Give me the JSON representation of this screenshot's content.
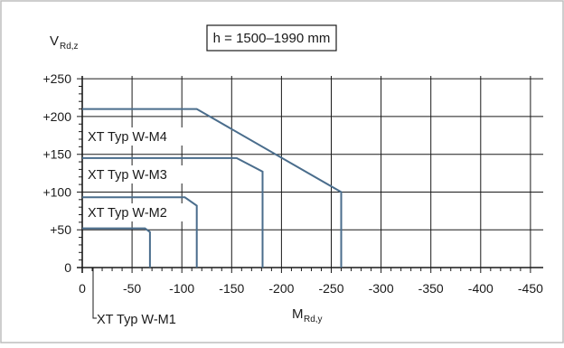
{
  "chart_data": {
    "type": "line",
    "title": "h = 1500–1990 mm",
    "ylabel": {
      "main": "V",
      "sub": "Rd,z"
    },
    "xlabel": {
      "main": "M",
      "sub": "Rd,y"
    },
    "xlim": [
      0,
      -460
    ],
    "ylim": [
      0,
      255
    ],
    "x_ticks": [
      {
        "value": 0,
        "label": "0"
      },
      {
        "value": -50,
        "label": "-50"
      },
      {
        "value": -100,
        "label": "-100"
      },
      {
        "value": -150,
        "label": "-150"
      },
      {
        "value": -200,
        "label": "-200"
      },
      {
        "value": -250,
        "label": "-250"
      },
      {
        "value": -300,
        "label": "-300"
      },
      {
        "value": -350,
        "label": "-350"
      },
      {
        "value": -400,
        "label": "-400"
      },
      {
        "value": -450,
        "label": "-450"
      }
    ],
    "y_ticks": [
      {
        "value": 0,
        "label": "0"
      },
      {
        "value": 50,
        "label": "+50"
      },
      {
        "value": 100,
        "label": "+100"
      },
      {
        "value": 150,
        "label": "+150"
      },
      {
        "value": 200,
        "label": "+200"
      },
      {
        "value": 250,
        "label": "+250"
      }
    ],
    "grid": true,
    "line_color": "#4a6d8c",
    "series": [
      {
        "name": "XT Typ W-M1",
        "x": [
          0,
          -63,
          -68,
          -68
        ],
        "y": [
          52,
          52,
          47,
          0
        ]
      },
      {
        "name": "XT Typ W-M2",
        "x": [
          0,
          -103,
          -115,
          -115
        ],
        "y": [
          93,
          93,
          82,
          0
        ]
      },
      {
        "name": "XT Typ W-M3",
        "x": [
          0,
          -155,
          -181,
          -181
        ],
        "y": [
          145,
          145,
          127,
          0
        ]
      },
      {
        "name": "XT Typ W-M4",
        "x": [
          0,
          -115,
          -260,
          -260
        ],
        "y": [
          210,
          210,
          100,
          0
        ]
      }
    ]
  }
}
